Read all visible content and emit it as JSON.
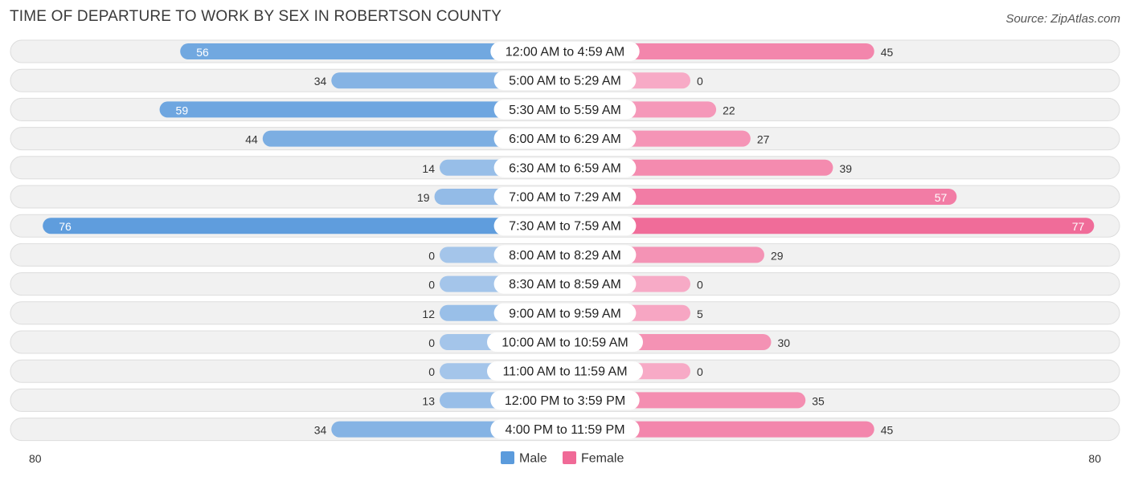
{
  "title": "TIME OF DEPARTURE TO WORK BY SEX IN ROBERTSON COUNTY",
  "source": "Source: ZipAtlas.com",
  "colors": {
    "male_strong": "#5b9bdc",
    "male_light": "#a4c5ea",
    "female_strong": "#f06a97",
    "female_light": "#f7aac6"
  },
  "chart_data": {
    "type": "bar",
    "orientation": "horizontal-diverging",
    "categories": [
      "12:00 AM to 4:59 AM",
      "5:00 AM to 5:29 AM",
      "5:30 AM to 5:59 AM",
      "6:00 AM to 6:29 AM",
      "6:30 AM to 6:59 AM",
      "7:00 AM to 7:29 AM",
      "7:30 AM to 7:59 AM",
      "8:00 AM to 8:29 AM",
      "8:30 AM to 8:59 AM",
      "9:00 AM to 9:59 AM",
      "10:00 AM to 10:59 AM",
      "11:00 AM to 11:59 AM",
      "12:00 PM to 3:59 PM",
      "4:00 PM to 11:59 PM"
    ],
    "series": [
      {
        "name": "Male",
        "values": [
          56,
          34,
          59,
          44,
          14,
          19,
          76,
          0,
          0,
          12,
          0,
          0,
          13,
          34
        ]
      },
      {
        "name": "Female",
        "values": [
          45,
          0,
          22,
          27,
          39,
          57,
          77,
          29,
          0,
          5,
          30,
          0,
          35,
          45
        ]
      }
    ],
    "axis_min_label": "80",
    "axis_max_label": "80",
    "xlim": [
      -80,
      80
    ],
    "legend_position": "bottom-center"
  }
}
